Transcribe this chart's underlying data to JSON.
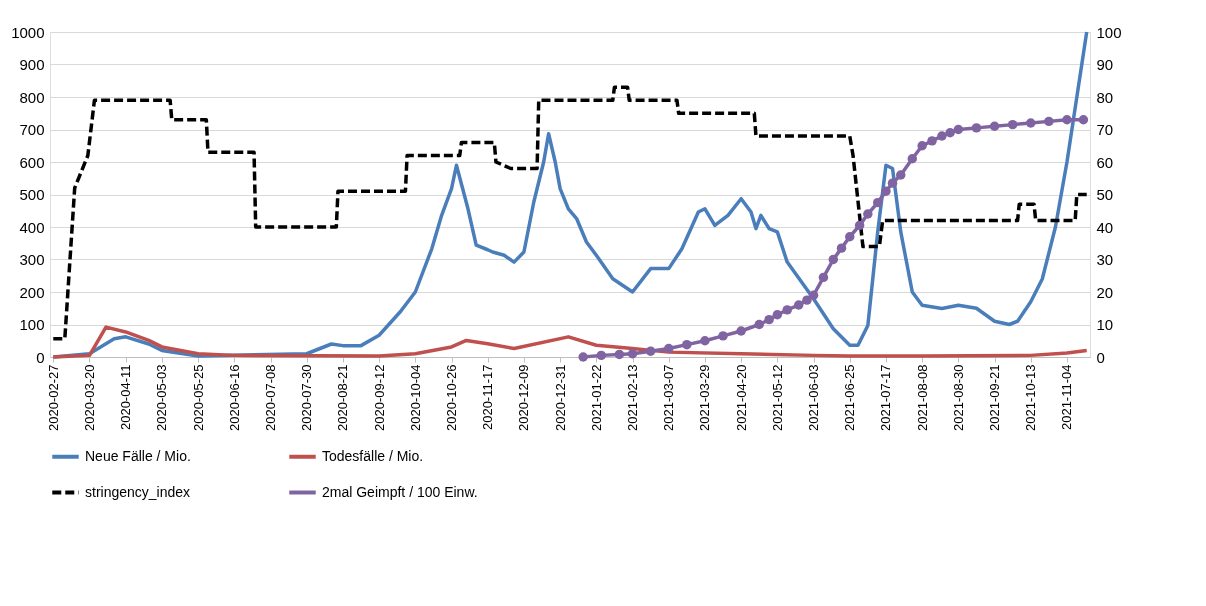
{
  "chart_data": {
    "type": "line",
    "ylim": [
      0,
      1000
    ],
    "yticks": [
      0,
      100,
      200,
      300,
      400,
      500,
      600,
      700,
      800,
      900,
      1000
    ],
    "y2lim": [
      0,
      100
    ],
    "y2ticks": [
      0,
      10,
      20,
      30,
      40,
      50,
      60,
      70,
      80,
      90,
      100
    ],
    "xlim": [
      "2020-02-25",
      "2021-11-18"
    ],
    "xticks": [
      "2020-02-27",
      "2020-03-20",
      "2020-04-11",
      "2020-05-03",
      "2020-05-25",
      "2020-06-16",
      "2020-07-08",
      "2020-07-30",
      "2020-08-21",
      "2020-09-12",
      "2020-10-04",
      "2020-10-26",
      "2020-11-17",
      "2020-12-09",
      "2020-12-31",
      "2021-01-22",
      "2021-02-13",
      "2021-03-07",
      "2021-03-29",
      "2021-04-20",
      "2021-05-12",
      "2021-06-03",
      "2021-06-25",
      "2021-07-17",
      "2021-08-08",
      "2021-08-30",
      "2021-09-21",
      "2021-10-13",
      "2021-11-04"
    ],
    "grid": "y",
    "legend": "bottom",
    "series": [
      {
        "name": "Neue Fälle / Mio.",
        "color": "#4a7ebb",
        "line_style": "solid",
        "x": [
          "2020-02-27",
          "2020-03-20",
          "2020-04-04",
          "2020-04-11",
          "2020-04-25",
          "2020-05-03",
          "2020-05-25",
          "2020-07-30",
          "2020-08-14",
          "2020-08-21",
          "2020-09-01",
          "2020-09-12",
          "2020-09-25",
          "2020-10-04",
          "2020-10-14",
          "2020-10-20",
          "2020-10-26",
          "2020-10-29",
          "2020-11-05",
          "2020-11-10",
          "2020-11-17",
          "2020-11-20",
          "2020-11-27",
          "2020-12-03",
          "2020-12-09",
          "2020-12-15",
          "2020-12-21",
          "2020-12-24",
          "2020-12-28",
          "2020-12-31",
          "2021-01-05",
          "2021-01-10",
          "2021-01-16",
          "2021-01-22",
          "2021-02-01",
          "2021-02-13",
          "2021-02-24",
          "2021-03-07",
          "2021-03-15",
          "2021-03-25",
          "2021-03-29",
          "2021-04-04",
          "2021-04-12",
          "2021-04-20",
          "2021-04-26",
          "2021-04-29",
          "2021-05-02",
          "2021-05-07",
          "2021-05-12",
          "2021-05-18",
          "2021-06-03",
          "2021-06-15",
          "2021-06-25",
          "2021-06-30",
          "2021-07-06",
          "2021-07-12",
          "2021-07-17",
          "2021-07-21",
          "2021-07-26",
          "2021-08-02",
          "2021-08-08",
          "2021-08-20",
          "2021-08-30",
          "2021-09-10",
          "2021-09-21",
          "2021-09-30",
          "2021-10-05",
          "2021-10-13",
          "2021-10-20",
          "2021-10-28",
          "2021-11-04",
          "2021-11-10",
          "2021-11-16"
        ],
        "values": [
          0,
          10,
          56,
          62,
          40,
          20,
          3,
          10,
          40,
          35,
          35,
          67,
          140,
          200,
          333,
          436,
          518,
          590,
          456,
          344,
          330,
          323,
          313,
          292,
          323,
          477,
          600,
          687,
          600,
          518,
          456,
          426,
          354,
          313,
          241,
          200,
          272,
          272,
          333,
          446,
          456,
          405,
          436,
          487,
          446,
          395,
          436,
          395,
          385,
          292,
          179,
          87,
          36,
          36,
          97,
          385,
          590,
          580,
          385,
          200,
          159,
          149,
          159,
          150,
          110,
          100,
          110,
          170,
          240,
          400,
          600,
          800,
          1000
        ]
      },
      {
        "name": "Todesfälle / Mio.",
        "color": "#c0504d",
        "line_style": "solid",
        "x": [
          "2020-02-27",
          "2020-03-20",
          "2020-03-30",
          "2020-04-11",
          "2020-04-25",
          "2020-05-03",
          "2020-05-25",
          "2020-06-16",
          "2020-09-12",
          "2020-10-04",
          "2020-10-26",
          "2020-11-04",
          "2020-11-17",
          "2020-12-03",
          "2021-01-05",
          "2021-01-22",
          "2021-02-13",
          "2021-03-07",
          "2021-04-20",
          "2021-06-03",
          "2021-06-25",
          "2021-08-08",
          "2021-10-13",
          "2021-11-04",
          "2021-11-16"
        ],
        "values": [
          0,
          5,
          92,
          77,
          51,
          31,
          10,
          5,
          3,
          10,
          31,
          51,
          41,
          26,
          62,
          36,
          26,
          15,
          10,
          5,
          3,
          3,
          5,
          12,
          20
        ]
      },
      {
        "name": "stringency_index",
        "color": "#000000",
        "axis": "y2",
        "line_style": "dashed",
        "x": [
          "2020-02-27",
          "2020-03-05",
          "2020-03-11",
          "2020-03-19",
          "2020-03-23",
          "2020-05-08",
          "2020-05-09",
          "2020-05-30",
          "2020-05-31",
          "2020-06-28",
          "2020-06-29",
          "2020-08-17",
          "2020-08-18",
          "2020-09-28",
          "2020-09-29",
          "2020-10-31",
          "2020-11-01",
          "2020-11-21",
          "2020-11-22",
          "2020-12-01",
          "2020-12-17",
          "2020-12-18",
          "2021-02-01",
          "2021-02-02",
          "2021-02-10",
          "2021-02-11",
          "2021-03-12",
          "2021-03-13",
          "2021-04-28",
          "2021-04-29",
          "2021-06-25",
          "2021-06-27",
          "2021-07-03",
          "2021-07-13",
          "2021-07-15",
          "2021-10-05",
          "2021-10-06",
          "2021-10-15",
          "2021-10-16",
          "2021-11-09",
          "2021-11-10",
          "2021-11-16"
        ],
        "values": [
          5.6,
          5.6,
          52,
          62,
          79,
          79,
          73,
          73,
          63,
          63,
          40,
          40,
          51,
          51,
          62,
          62,
          66,
          66,
          60,
          58,
          58,
          79,
          79,
          83,
          83,
          79,
          79,
          75,
          75,
          68,
          68,
          62,
          34,
          34,
          42,
          42,
          47,
          47,
          42,
          42,
          50,
          50
        ]
      },
      {
        "name": "2mal Geimpft / 100 Einw.",
        "color": "#8064a2",
        "axis": "y2",
        "line_style": "solid",
        "marker": "circle",
        "x": [
          "2021-01-14",
          "2021-01-25",
          "2021-02-05",
          "2021-02-13",
          "2021-02-24",
          "2021-03-07",
          "2021-03-18",
          "2021-03-29",
          "2021-04-09",
          "2021-04-20",
          "2021-05-01",
          "2021-05-07",
          "2021-05-12",
          "2021-05-18",
          "2021-05-25",
          "2021-05-30",
          "2021-06-03",
          "2021-06-09",
          "2021-06-15",
          "2021-06-20",
          "2021-06-25",
          "2021-07-01",
          "2021-07-06",
          "2021-07-12",
          "2021-07-17",
          "2021-07-21",
          "2021-07-26",
          "2021-08-02",
          "2021-08-08",
          "2021-08-14",
          "2021-08-20",
          "2021-08-25",
          "2021-08-30",
          "2021-09-10",
          "2021-09-21",
          "2021-10-02",
          "2021-10-13",
          "2021-10-24",
          "2021-11-04",
          "2021-11-14"
        ],
        "values": [
          0,
          0.5,
          0.8,
          1,
          1.8,
          2.6,
          3.8,
          5,
          6.5,
          8,
          10,
          11.5,
          13,
          14.5,
          16,
          17.5,
          19,
          24.5,
          30,
          33.5,
          37,
          40.5,
          44,
          47.5,
          51,
          53.5,
          56,
          61,
          65,
          66.5,
          68,
          69,
          70,
          70.5,
          71,
          71.5,
          72,
          72.5,
          73,
          73
        ]
      }
    ]
  }
}
